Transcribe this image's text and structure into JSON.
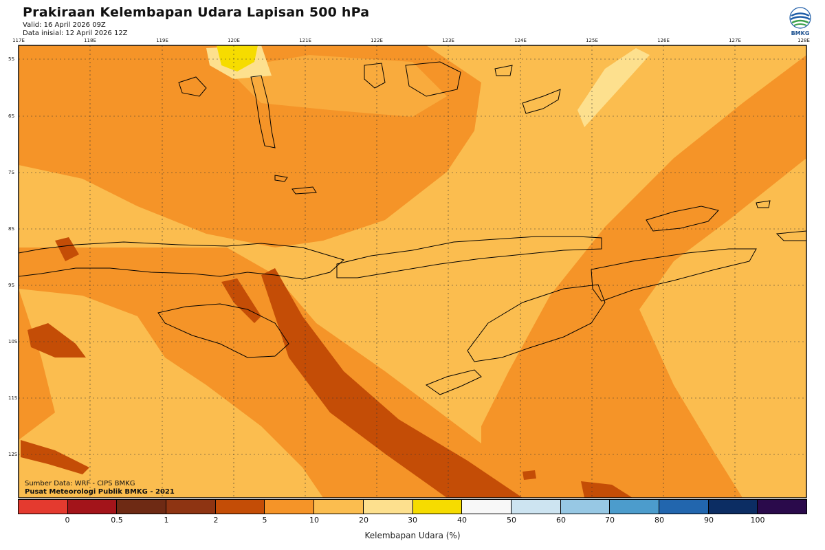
{
  "header": {
    "title": "Prakiraan Kelembapan Udara Lapisan 500 hPa",
    "valid": "Valid: 16 April 2026 09Z",
    "init": "Data inisial: 12 April 2026 12Z"
  },
  "logo": {
    "text": "BMKG"
  },
  "map": {
    "lon_labels": [
      "117E",
      "118E",
      "119E",
      "120E",
      "121E",
      "122E",
      "123E",
      "124E",
      "125E",
      "126E",
      "127E",
      "128E"
    ],
    "lat_labels": [
      "5S",
      "6S",
      "7S",
      "8S",
      "9S",
      "10S",
      "11S",
      "12S"
    ]
  },
  "credits": {
    "source": "Sumber Data: WRF - CIPS BMKG",
    "publisher": "Pusat Meteorologi Publik BMKG - 2021"
  },
  "colorbar": {
    "title": "Kelembapan Udara (%)",
    "labels": [
      "0",
      "0.5",
      "1",
      "2",
      "5",
      "10",
      "20",
      "30",
      "40",
      "50",
      "60",
      "70",
      "80",
      "90",
      "100"
    ],
    "colors": [
      "#e43a2f",
      "#a3141a",
      "#6e2a14",
      "#8e3412",
      "#c44d06",
      "#f59428",
      "#fbbd4f",
      "#fde08e",
      "#f6dc00",
      "#f8f8f8",
      "#cde4f1",
      "#97c8e4",
      "#4c9ccc",
      "#2266ae",
      "#0c2d63",
      "#2a0a4b"
    ]
  }
}
